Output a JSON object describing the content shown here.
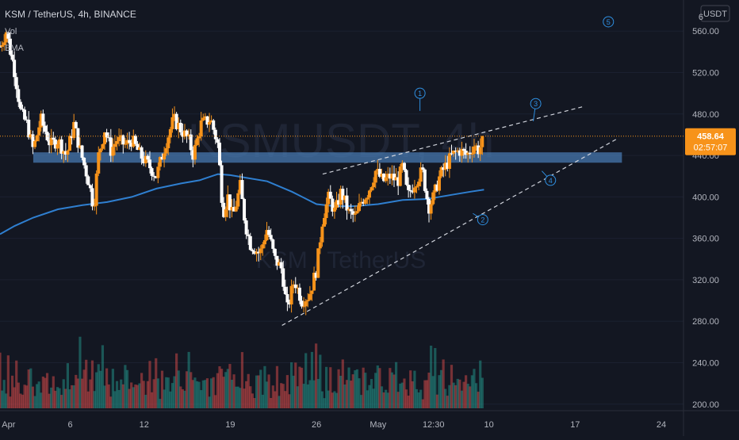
{
  "header": {
    "symbol": "KSM / TetherUS, 4h, BINANCE",
    "indicators": [
      "Vol",
      "EMA"
    ],
    "currency": "USDT",
    "watermark_ticker": "KSMUSDT, 4h",
    "watermark_name": "KSM / TetherUS"
  },
  "price_badge": {
    "price": "458.64",
    "countdown": "02:57:07"
  },
  "colors": {
    "background": "#131722",
    "up": "#f7931a",
    "down": "#ffffff",
    "ema": "#2f7fd0",
    "zone": "#4a7fb8",
    "annotation": "#2f8fe0",
    "vol_up": "#26a69a",
    "vol_down": "#ef5350",
    "price_line": "#f7931a",
    "axis_text": "#b2b5be"
  },
  "chart_data": {
    "type": "candlestick",
    "symbol": "KSMUSDT",
    "interval": "4h",
    "y_axis": {
      "ticks": [
        200,
        240,
        280,
        320,
        360,
        400,
        440,
        480,
        520,
        560
      ],
      "tick_labels": [
        "200.00",
        "240.00",
        "280.00",
        "320.00",
        "360.00",
        "400.00",
        "440.00",
        "480.00",
        "520.00",
        "560.00"
      ],
      "cut_label": "6",
      "range": [
        196,
        590
      ]
    },
    "x_axis": {
      "ticks": [
        {
          "label": "Apr",
          "day": 1
        },
        {
          "label": "6",
          "day": 6
        },
        {
          "label": "12",
          "day": 12
        },
        {
          "label": "19",
          "day": 19
        },
        {
          "label": "26",
          "day": 26
        },
        {
          "label": "May",
          "day": 31
        },
        {
          "label": "12:30",
          "day": 35.5
        },
        {
          "label": "10",
          "day": 40
        },
        {
          "label": "17",
          "day": 47
        },
        {
          "label": "24",
          "day": 54
        }
      ],
      "range": [
        0.3,
        55.8
      ]
    },
    "last_price": 458.64,
    "close_path": [
      [
        0.3,
        545
      ],
      [
        0.8,
        560
      ],
      [
        1.5,
        520
      ],
      [
        2,
        480
      ],
      [
        2.5,
        470
      ],
      [
        3,
        445
      ],
      [
        3.6,
        475
      ],
      [
        4.4,
        450
      ],
      [
        5,
        455
      ],
      [
        5.7,
        440
      ],
      [
        6.3,
        470
      ],
      [
        6.8,
        445
      ],
      [
        7.5,
        415
      ],
      [
        7.9,
        390
      ],
      [
        8.3,
        440
      ],
      [
        8.8,
        465
      ],
      [
        9.3,
        445
      ],
      [
        9.8,
        455
      ],
      [
        10.5,
        450
      ],
      [
        11,
        455
      ],
      [
        11.7,
        440
      ],
      [
        12.4,
        430
      ],
      [
        13,
        420
      ],
      [
        13.7,
        450
      ],
      [
        14.4,
        475
      ],
      [
        15,
        465
      ],
      [
        15.6,
        455
      ],
      [
        16,
        440
      ],
      [
        16.6,
        470
      ],
      [
        17.4,
        475
      ],
      [
        18,
        450
      ],
      [
        18.4,
        385
      ],
      [
        18.8,
        400
      ],
      [
        19.2,
        380
      ],
      [
        19.8,
        410
      ],
      [
        20.2,
        375
      ],
      [
        20.6,
        355
      ],
      [
        21.4,
        345
      ],
      [
        22,
        370
      ],
      [
        22.6,
        340
      ],
      [
        23.2,
        330
      ],
      [
        23.6,
        290
      ],
      [
        24.2,
        320
      ],
      [
        24.8,
        300
      ],
      [
        25.4,
        305
      ],
      [
        26,
        330
      ],
      [
        26.5,
        380
      ],
      [
        27,
        400
      ],
      [
        27.5,
        385
      ],
      [
        28,
        405
      ],
      [
        28.6,
        385
      ],
      [
        29.2,
        380
      ],
      [
        29.6,
        395
      ],
      [
        30.2,
        405
      ],
      [
        30.8,
        425
      ],
      [
        31.4,
        415
      ],
      [
        32,
        420
      ],
      [
        32.6,
        415
      ],
      [
        33,
        430
      ],
      [
        33.4,
        400
      ],
      [
        34,
        415
      ],
      [
        34.6,
        425
      ],
      [
        35.1,
        390
      ],
      [
        35.5,
        400
      ],
      [
        36,
        420
      ],
      [
        36.5,
        430
      ],
      [
        37,
        440
      ],
      [
        37.6,
        445
      ],
      [
        38.2,
        440
      ],
      [
        38.8,
        450
      ],
      [
        39.2,
        445
      ],
      [
        39.6,
        458.64
      ]
    ],
    "volume_heights": [
      55,
      40,
      70,
      45,
      60,
      35,
      50,
      40,
      48,
      30,
      38,
      25,
      45,
      30,
      55,
      60,
      42,
      35,
      28,
      40,
      32,
      45,
      38,
      50,
      30,
      42,
      55,
      35,
      28,
      48,
      40,
      62,
      38,
      45,
      30,
      52,
      35,
      40,
      58,
      70,
      45,
      38,
      50,
      42,
      35,
      60,
      48,
      38,
      55,
      45,
      65,
      40,
      58,
      50,
      30,
      42,
      36,
      48,
      40,
      52,
      35,
      45,
      38,
      60,
      42,
      30,
      48,
      55,
      38,
      45,
      40,
      30,
      35,
      48,
      42,
      38,
      55,
      40,
      28,
      50,
      45,
      62,
      38,
      42,
      30,
      48,
      55,
      40,
      35,
      52,
      45,
      38,
      60,
      40,
      48,
      35,
      42,
      55,
      38,
      45,
      30,
      40,
      28,
      35
    ],
    "ema": [
      [
        0.3,
        364
      ],
      [
        1.5,
        372
      ],
      [
        3,
        380
      ],
      [
        5,
        388
      ],
      [
        7,
        392
      ],
      [
        9,
        395
      ],
      [
        11,
        400
      ],
      [
        13,
        408
      ],
      [
        15,
        413
      ],
      [
        16.5,
        416
      ],
      [
        18,
        422
      ],
      [
        19,
        421
      ],
      [
        20,
        419
      ],
      [
        22,
        415
      ],
      [
        24,
        405
      ],
      [
        26,
        393
      ],
      [
        27.5,
        391
      ],
      [
        29,
        391
      ],
      [
        31,
        393
      ],
      [
        33,
        397
      ],
      [
        35,
        398
      ],
      [
        37,
        402
      ],
      [
        38.5,
        405
      ],
      [
        39.6,
        407
      ]
    ],
    "resistance_zone": {
      "low": 433,
      "high": 443,
      "x_start": 3.0,
      "x_end": 50.8
    },
    "channel_lines": [
      {
        "style": "dashed",
        "from": [
          26.5,
          422
        ],
        "to": [
          47.6,
          487
        ]
      },
      {
        "style": "dashed",
        "from": [
          23.2,
          276
        ],
        "to": [
          50.4,
          456
        ]
      }
    ],
    "wave_labels": [
      {
        "label": "1",
        "day": 34.4,
        "price": 500,
        "x_anchor": [
          34.4,
          483
        ]
      },
      {
        "label": "2",
        "day": 39.5,
        "price": 378,
        "x_anchor": [
          38.7,
          384
        ]
      },
      {
        "label": "3",
        "day": 43.8,
        "price": 490,
        "x_anchor": [
          43.6,
          473
        ]
      },
      {
        "label": "4",
        "day": 45.0,
        "price": 416,
        "x_anchor": [
          44.3,
          425
        ]
      },
      {
        "label": "5",
        "day": 49.7,
        "price": 569,
        "x_anchor": null
      }
    ],
    "title": "KSM / TetherUS, 4h, BINANCE"
  }
}
